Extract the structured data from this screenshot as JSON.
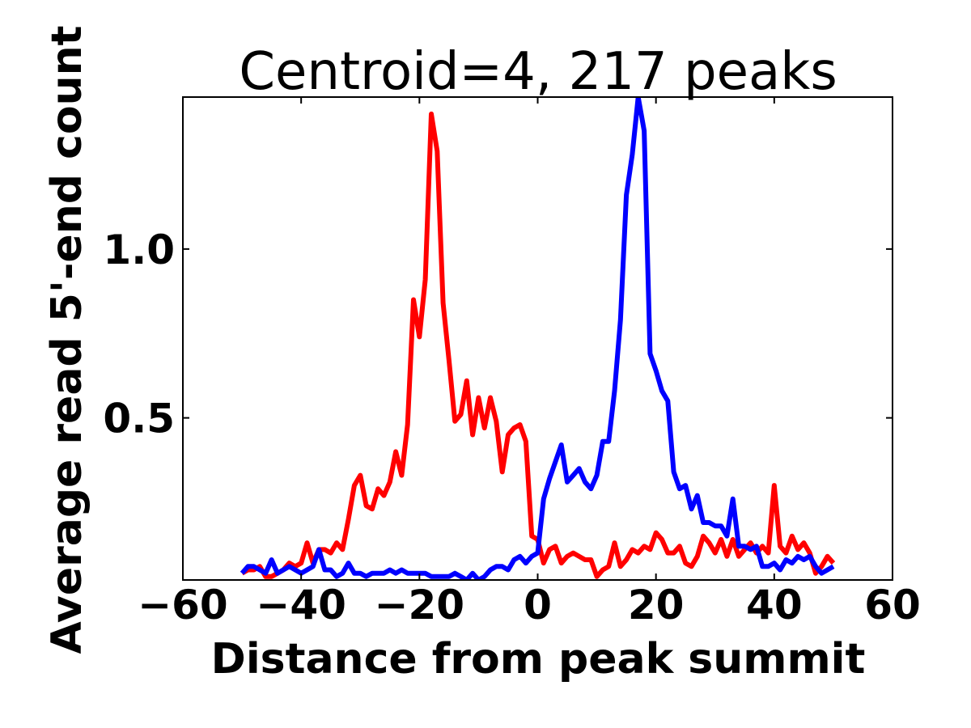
{
  "chart_data": {
    "type": "line",
    "title": "Centroid=4, 217 peaks",
    "xlabel": "Distance from peak summit",
    "ylabel": "Average read 5'-end count",
    "xlim": [
      -60,
      60
    ],
    "ylim": [
      0.02,
      1.45
    ],
    "xticks": [
      -60,
      -40,
      -20,
      0,
      20,
      40,
      60
    ],
    "xtick_labels": [
      "−60",
      "−40",
      "−20",
      "0",
      "20",
      "40",
      "60"
    ],
    "yticks": [
      0.5,
      1.0
    ],
    "ytick_labels": [
      "0.5",
      "1.0"
    ],
    "grid": false,
    "legend": "none",
    "x": [
      -50,
      -49,
      -48,
      -47,
      -46,
      -45,
      -44,
      -43,
      -42,
      -41,
      -40,
      -39,
      -38,
      -37,
      -36,
      -35,
      -34,
      -33,
      -32,
      -31,
      -30,
      -29,
      -28,
      -27,
      -26,
      -25,
      -24,
      -23,
      -22,
      -21,
      -20,
      -19,
      -18,
      -17,
      -16,
      -15,
      -14,
      -13,
      -12,
      -11,
      -10,
      -9,
      -8,
      -7,
      -6,
      -5,
      -4,
      -3,
      -2,
      -1,
      0,
      1,
      2,
      3,
      4,
      5,
      6,
      7,
      8,
      9,
      10,
      11,
      12,
      13,
      14,
      15,
      16,
      17,
      18,
      19,
      20,
      21,
      22,
      23,
      24,
      25,
      26,
      27,
      28,
      29,
      30,
      31,
      32,
      33,
      34,
      35,
      36,
      37,
      38,
      39,
      40,
      41,
      42,
      43,
      44,
      45,
      46,
      47,
      48,
      49,
      50
    ],
    "series": [
      {
        "name": "red",
        "color": "#ff0000",
        "values": [
          0.04,
          0.05,
          0.05,
          0.06,
          0.03,
          0.03,
          0.04,
          0.05,
          0.07,
          0.06,
          0.07,
          0.13,
          0.07,
          0.11,
          0.11,
          0.1,
          0.13,
          0.11,
          0.2,
          0.3,
          0.33,
          0.24,
          0.23,
          0.29,
          0.27,
          0.31,
          0.4,
          0.33,
          0.48,
          0.85,
          0.74,
          0.91,
          1.4,
          1.29,
          0.84,
          0.67,
          0.49,
          0.51,
          0.61,
          0.45,
          0.56,
          0.47,
          0.56,
          0.49,
          0.34,
          0.45,
          0.47,
          0.48,
          0.43,
          0.15,
          0.14,
          0.07,
          0.11,
          0.12,
          0.07,
          0.09,
          0.1,
          0.09,
          0.08,
          0.08,
          0.03,
          0.05,
          0.06,
          0.13,
          0.06,
          0.08,
          0.11,
          0.1,
          0.12,
          0.11,
          0.16,
          0.14,
          0.1,
          0.1,
          0.12,
          0.07,
          0.06,
          0.09,
          0.15,
          0.13,
          0.1,
          0.14,
          0.09,
          0.14,
          0.09,
          0.11,
          0.13,
          0.1,
          0.12,
          0.1,
          0.3,
          0.12,
          0.1,
          0.15,
          0.11,
          0.13,
          0.1,
          0.04,
          0.06,
          0.09,
          0.07
        ]
      },
      {
        "name": "blue",
        "color": "#0000ff",
        "values": [
          0.04,
          0.06,
          0.06,
          0.05,
          0.04,
          0.08,
          0.04,
          0.05,
          0.06,
          0.05,
          0.04,
          0.05,
          0.06,
          0.11,
          0.05,
          0.05,
          0.03,
          0.04,
          0.07,
          0.04,
          0.04,
          0.03,
          0.04,
          0.04,
          0.04,
          0.05,
          0.04,
          0.05,
          0.04,
          0.04,
          0.04,
          0.04,
          0.03,
          0.03,
          0.03,
          0.03,
          0.04,
          0.03,
          0.02,
          0.04,
          0.02,
          0.03,
          0.05,
          0.06,
          0.06,
          0.05,
          0.08,
          0.09,
          0.07,
          0.09,
          0.1,
          0.26,
          0.32,
          0.37,
          0.42,
          0.31,
          0.33,
          0.35,
          0.31,
          0.29,
          0.33,
          0.43,
          0.43,
          0.58,
          0.79,
          1.16,
          1.28,
          1.45,
          1.35,
          0.69,
          0.64,
          0.58,
          0.55,
          0.34,
          0.29,
          0.3,
          0.23,
          0.27,
          0.19,
          0.19,
          0.18,
          0.18,
          0.15,
          0.26,
          0.12,
          0.12,
          0.11,
          0.12,
          0.06,
          0.06,
          0.07,
          0.05,
          0.08,
          0.07,
          0.09,
          0.08,
          0.09,
          0.06,
          0.04,
          0.05,
          0.06
        ]
      }
    ]
  }
}
